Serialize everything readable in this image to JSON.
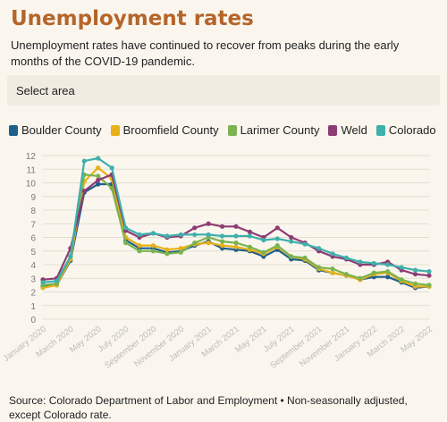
{
  "header": {
    "title": "Unemployment rates",
    "subtitle": "Unemployment rates have continued to recover from peaks during the early months of the COVID-19 pandemic."
  },
  "select": {
    "label": "Select area"
  },
  "legend": [
    {
      "name": "Boulder County",
      "color": "#1f5f8b"
    },
    {
      "name": "Broomfield County",
      "color": "#e8b117"
    },
    {
      "name": "Larimer County",
      "color": "#7cb350"
    },
    {
      "name": "Weld",
      "color": "#8e3b74"
    },
    {
      "name": "Colorado",
      "color": "#3fb0ac"
    }
  ],
  "source": "Source: Colorado Department of Labor and Employment • Non-seasonally adjusted, except Colorado rate.",
  "chart_data": {
    "type": "line",
    "x_tick_labels": [
      "January 2020",
      "March 2020",
      "May 2020",
      "July 2020",
      "September 2020",
      "November 2020",
      "January 2021",
      "March 2021",
      "May 2021",
      "July 2021",
      "September 2021",
      "November 2021",
      "January 2022",
      "March 2022",
      "May 2022"
    ],
    "ylim": [
      0,
      12
    ],
    "y_ticks": [
      0,
      1,
      2,
      3,
      4,
      5,
      6,
      7,
      8,
      9,
      10,
      11,
      12
    ],
    "grid": true,
    "x": [
      "2020-01",
      "2020-02",
      "2020-03",
      "2020-04",
      "2020-05",
      "2020-06",
      "2020-07",
      "2020-08",
      "2020-09",
      "2020-10",
      "2020-11",
      "2020-12",
      "2021-01",
      "2021-02",
      "2021-03",
      "2021-04",
      "2021-05",
      "2021-06",
      "2021-07",
      "2021-08",
      "2021-09",
      "2021-10",
      "2021-11",
      "2021-12",
      "2022-01",
      "2022-02",
      "2022-03",
      "2022-04",
      "2022-05"
    ],
    "series": [
      {
        "name": "Boulder County",
        "color": "#1f5f8b",
        "values": [
          2.4,
          2.5,
          4.3,
          9.3,
          9.9,
          9.9,
          5.8,
          5.2,
          5.2,
          4.9,
          5.0,
          5.4,
          5.7,
          5.2,
          5.1,
          5.0,
          4.6,
          5.1,
          4.4,
          4.3,
          3.6,
          3.4,
          3.2,
          2.9,
          3.1,
          3.1,
          2.7,
          2.3,
          2.4
        ]
      },
      {
        "name": "Broomfield County",
        "color": "#e8b117",
        "values": [
          2.3,
          2.5,
          4.4,
          10.1,
          11.1,
          10.3,
          6.0,
          5.4,
          5.4,
          5.1,
          5.2,
          5.5,
          5.6,
          5.4,
          5.3,
          5.1,
          4.8,
          5.3,
          4.6,
          4.4,
          3.7,
          3.4,
          3.2,
          2.9,
          3.3,
          3.4,
          2.8,
          2.4,
          2.4
        ]
      },
      {
        "name": "Larimer County",
        "color": "#7cb350",
        "values": [
          2.5,
          2.6,
          4.6,
          10.6,
          10.5,
          9.6,
          5.6,
          5.0,
          5.0,
          4.8,
          4.9,
          5.6,
          6.0,
          5.7,
          5.6,
          5.3,
          4.9,
          5.4,
          4.6,
          4.5,
          3.8,
          3.7,
          3.3,
          3.0,
          3.4,
          3.5,
          2.9,
          2.6,
          2.5
        ]
      },
      {
        "name": "Weld",
        "color": "#8e3b74",
        "values": [
          2.9,
          3.0,
          5.2,
          9.4,
          10.2,
          10.6,
          6.5,
          6.0,
          6.3,
          6.0,
          6.1,
          6.7,
          7.0,
          6.8,
          6.8,
          6.4,
          6.0,
          6.7,
          6.0,
          5.6,
          5.0,
          4.6,
          4.4,
          4.0,
          4.0,
          4.2,
          3.6,
          3.3,
          3.2
        ]
      },
      {
        "name": "Colorado",
        "color": "#3fb0ac",
        "values": [
          2.7,
          2.8,
          4.6,
          11.6,
          11.8,
          11.1,
          6.7,
          6.2,
          6.3,
          6.1,
          6.2,
          6.2,
          6.2,
          6.1,
          6.1,
          6.1,
          5.8,
          5.9,
          5.7,
          5.5,
          5.2,
          4.8,
          4.5,
          4.2,
          4.1,
          4.0,
          3.8,
          3.6,
          3.5
        ]
      }
    ]
  }
}
